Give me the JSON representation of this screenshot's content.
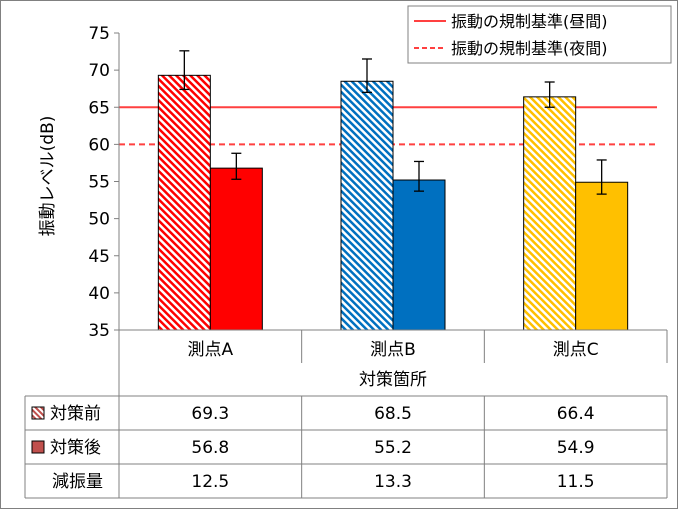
{
  "chart_data": {
    "type": "bar",
    "title": "",
    "xlabel": "対策箇所",
    "ylabel": "振動レベル(dB)",
    "ylim": [
      35,
      75
    ],
    "yticks": [
      35,
      40,
      45,
      50,
      55,
      60,
      65,
      70,
      75
    ],
    "grid": false,
    "legend_position": "top-right",
    "categories": [
      "測点A",
      "測点B",
      "測点C"
    ],
    "series": [
      {
        "name": "対策前",
        "values": [
          69.3,
          68.5,
          66.4
        ],
        "error_low": [
          67.4,
          67.0,
          65.0
        ],
        "error_high": [
          72.6,
          71.5,
          68.4
        ],
        "colors": [
          "#ff0000",
          "#0070c0",
          "#ffc000"
        ],
        "pattern": "hatched"
      },
      {
        "name": "対策後",
        "values": [
          56.8,
          55.2,
          54.9
        ],
        "error_low": [
          55.3,
          53.7,
          53.3
        ],
        "error_high": [
          58.8,
          57.7,
          57.9
        ],
        "colors": [
          "#ff0000",
          "#0070c0",
          "#ffc000"
        ],
        "pattern": "solid"
      }
    ],
    "reference_lines": [
      {
        "name": "振動の規制基準(昼間)",
        "value": 65,
        "style": "solid",
        "color": "#ff4040"
      },
      {
        "name": "振動の規制基準(夜間)",
        "value": 60,
        "style": "dashed",
        "color": "#ff4040"
      }
    ],
    "table": {
      "rows": [
        {
          "label": "対策前",
          "marker": "hatched",
          "values": [
            "69.3",
            "68.5",
            "66.4"
          ]
        },
        {
          "label": "対策後",
          "marker": "solid",
          "values": [
            "56.8",
            "55.2",
            "54.9"
          ]
        },
        {
          "label": "減振量",
          "marker": "none",
          "values": [
            "12.5",
            "13.3",
            "11.5"
          ]
        }
      ]
    }
  }
}
